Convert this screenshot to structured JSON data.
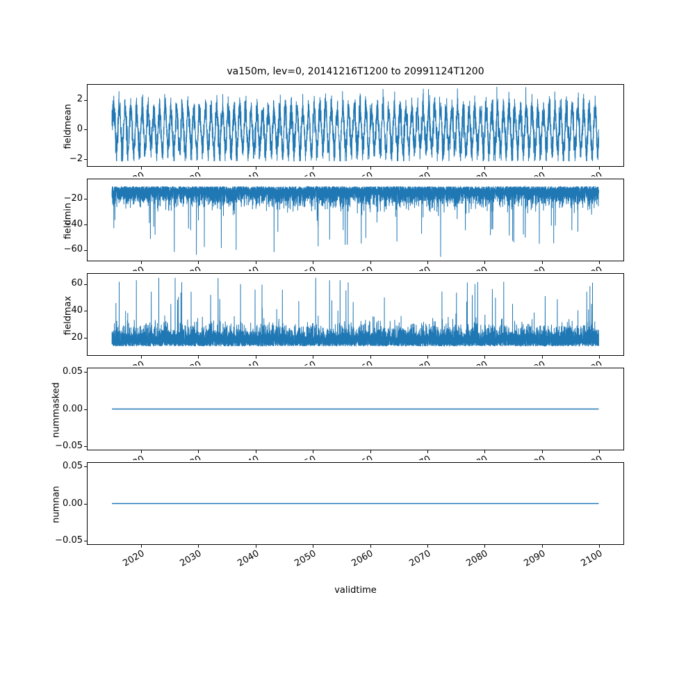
{
  "figure": {
    "title": "va150m, lev=0, 20141216T1200 to 20991124T1200",
    "xlabel": "validtime",
    "line_color": "#1f77b4",
    "background": "#ffffff",
    "xlim": [
      2010.7,
      2104.2
    ],
    "x_range_data": [
      2014.96,
      2099.9
    ],
    "x_ticks": [
      {
        "v": 2020,
        "label": "2020"
      },
      {
        "v": 2030,
        "label": "2030"
      },
      {
        "v": 2040,
        "label": "2040"
      },
      {
        "v": 2050,
        "label": "2050"
      },
      {
        "v": 2060,
        "label": "2060"
      },
      {
        "v": 2070,
        "label": "2070"
      },
      {
        "v": 2080,
        "label": "2080"
      },
      {
        "v": 2090,
        "label": "2090"
      },
      {
        "v": 2100,
        "label": "2100"
      }
    ]
  },
  "chart_data": [
    {
      "type": "line",
      "ylabel": "fieldmean",
      "ylim": [
        -2.45,
        3.0
      ],
      "yticks": [
        {
          "v": 2,
          "label": "2"
        },
        {
          "v": 0,
          "label": "0"
        },
        {
          "v": -2,
          "label": "−2"
        }
      ],
      "series": {
        "name": "fieldmean",
        "kind": "seasonal",
        "seed": 11,
        "n": 6000,
        "amp": 1.35,
        "noise": 0.5,
        "clip": [
          -2.12,
          2.86
        ],
        "observed_range": [
          -2.1,
          2.85
        ],
        "summary": "dense annual oscillation centered on 0, mostly between -2 and +2.5"
      }
    },
    {
      "type": "line",
      "ylabel": "fieldmin",
      "ylim": [
        -68.5,
        -4.5
      ],
      "yticks": [
        {
          "v": -20,
          "label": "−20"
        },
        {
          "v": -40,
          "label": "−40"
        },
        {
          "v": -60,
          "label": "−60"
        }
      ],
      "series": {
        "name": "fieldmin",
        "kind": "noisy_band",
        "seed": 22,
        "n": 8000,
        "center": -10,
        "band": 6.5,
        "dir": -1,
        "spike_rate": 0.01,
        "spike_min": 8,
        "spike_span": 38,
        "clip": [
          -65.5,
          -8
        ],
        "observed_range": [
          -65,
          -8
        ],
        "summary": "dense noise band around -10 to -30 with downward spikes to about -65"
      }
    },
    {
      "type": "line",
      "ylabel": "fieldmax",
      "ylim": [
        6.9,
        67.5
      ],
      "yticks": [
        {
          "v": 60,
          "label": "60"
        },
        {
          "v": 40,
          "label": "40"
        },
        {
          "v": 20,
          "label": "20"
        }
      ],
      "series": {
        "name": "fieldmax",
        "kind": "noisy_band",
        "seed": 33,
        "n": 8000,
        "center": 13.5,
        "band": 6.5,
        "dir": 1,
        "spike_rate": 0.01,
        "spike_min": 8,
        "spike_span": 40,
        "clip": [
          9.5,
          64.5
        ],
        "observed_range": [
          10,
          64
        ],
        "summary": "dense noise band around 10 to 35 with upward spikes to about 64"
      }
    },
    {
      "type": "line",
      "ylabel": "nummasked",
      "ylim": [
        -0.055,
        0.055
      ],
      "yticks": [
        {
          "v": 0.05,
          "label": "0.05"
        },
        {
          "v": 0.0,
          "label": "0.00"
        },
        {
          "v": -0.05,
          "label": "−0.05"
        }
      ],
      "series": {
        "name": "nummasked",
        "kind": "constant",
        "seed": 44,
        "n": 2,
        "value": 0,
        "observed_range": [
          0,
          0
        ],
        "summary": "constant 0.00 across the full time range"
      }
    },
    {
      "type": "line",
      "ylabel": "numnan",
      "ylim": [
        -0.055,
        0.055
      ],
      "yticks": [
        {
          "v": 0.05,
          "label": "0.05"
        },
        {
          "v": 0.0,
          "label": "0.00"
        },
        {
          "v": -0.05,
          "label": "−0.05"
        }
      ],
      "series": {
        "name": "numnan",
        "kind": "constant",
        "seed": 55,
        "n": 2,
        "value": 0,
        "observed_range": [
          0,
          0
        ],
        "summary": "constant 0.00 across the full time range"
      }
    }
  ]
}
